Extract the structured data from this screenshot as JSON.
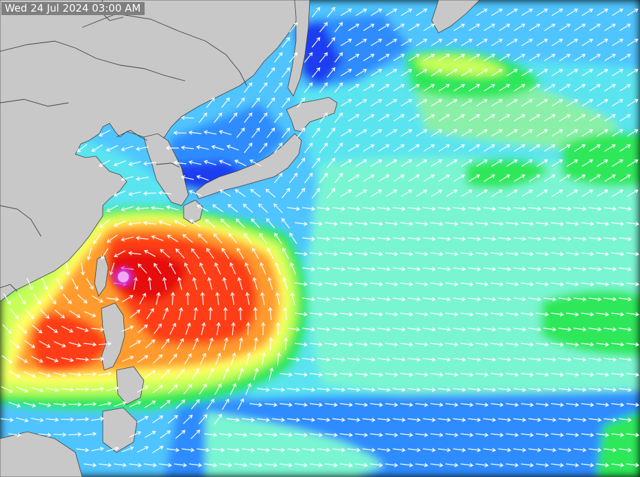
{
  "timestamp": "Wed 24 Jul 2024 03:00 AM",
  "palette": {
    "land": "#c8c8c8",
    "border": "#404040",
    "arrow": "#ffffff",
    "bands": {
      "deep_blue": "#1e3cf0",
      "blue": "#2f8cff",
      "sky": "#4fc4ff",
      "cyan": "#5ae4f0",
      "aqua": "#7af5d2",
      "light_green": "#8af0a8",
      "green": "#2ee85a",
      "yellow_green": "#c6ff5a",
      "yellow": "#ffff64",
      "orange": "#ff9b2f",
      "red": "#ff3c14",
      "deep_red": "#e60a0a",
      "magenta": "#d222d2"
    }
  },
  "icons": {
    "arrow": "wind-arrow-icon",
    "storm": "typhoon-center-icon"
  }
}
